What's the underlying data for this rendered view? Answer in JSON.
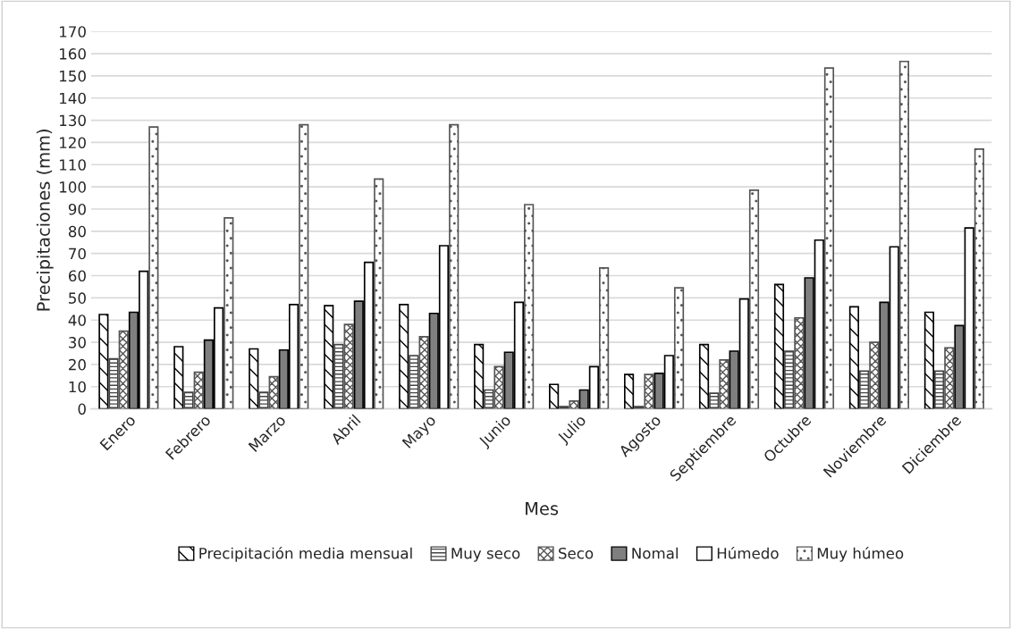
{
  "chart_data": {
    "type": "bar",
    "xlabel": "Mes",
    "ylabel": "Precipitaciones (mm)",
    "categories": [
      "Enero",
      "Febrero",
      "Marzo",
      "Abril",
      "Mayo",
      "Junio",
      "Julio",
      "Agosto",
      "Septiembre",
      "Octubre",
      "Noviembre",
      "Diciembre"
    ],
    "series": [
      {
        "name": "Precipitación media mensual",
        "color": "#000000",
        "values": [
          42.5,
          28,
          27,
          46.5,
          47,
          29,
          11,
          15.5,
          29,
          56,
          46,
          43.5
        ]
      },
      {
        "name": "Muy seco",
        "color": "#444444",
        "values": [
          22.5,
          7.5,
          7.5,
          29,
          24,
          8.5,
          1,
          1,
          7,
          26,
          17,
          17
        ]
      },
      {
        "name": "Seco",
        "color": "#555555",
        "values": [
          35,
          16.5,
          14.5,
          38,
          32.5,
          19,
          3.5,
          15.5,
          22,
          41,
          30,
          27.5
        ]
      },
      {
        "name": "Nomal",
        "color": "#7f7f7f",
        "values": [
          43.5,
          31,
          26.5,
          48.5,
          43,
          25.5,
          8.5,
          16,
          26,
          59,
          48,
          37.5
        ]
      },
      {
        "name": "Húmedo",
        "color": "#ffffff",
        "values": [
          62,
          45.5,
          47,
          66,
          73.5,
          48,
          19,
          24,
          49.5,
          76,
          73,
          81.5
        ]
      },
      {
        "name": "Muy húmeo",
        "color": "#555555",
        "values": [
          127,
          86,
          128,
          103.5,
          128,
          92,
          63.5,
          54.5,
          98.5,
          153.5,
          156.5,
          117
        ]
      }
    ],
    "ylim": [
      0,
      170
    ],
    "yticks": [
      0,
      10,
      20,
      30,
      40,
      50,
      60,
      70,
      80,
      90,
      100,
      110,
      120,
      130,
      140,
      150,
      160,
      170
    ],
    "grid": "y",
    "legend": "bottom"
  }
}
